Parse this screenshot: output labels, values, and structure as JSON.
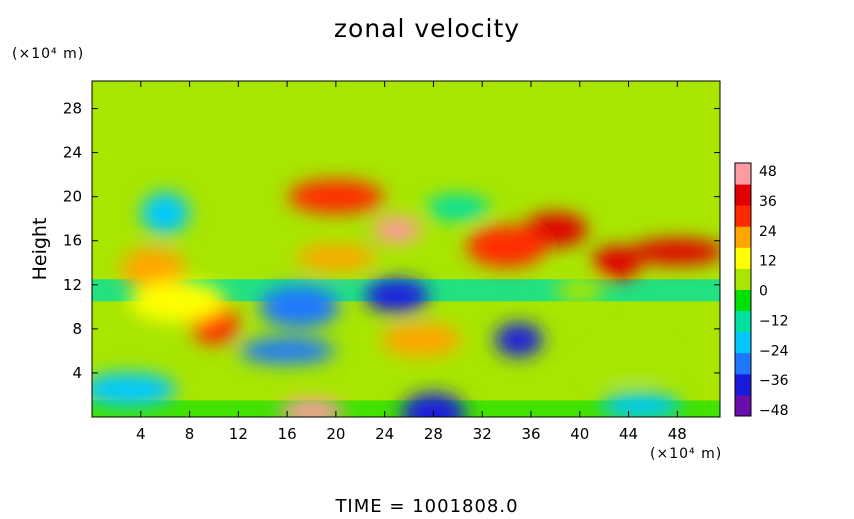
{
  "chart_data": {
    "type": "heatmap",
    "title": "zonal velocity",
    "ylabel": "Height",
    "xunit": "(×10⁴ m)",
    "yunit": "(×10⁴ m)",
    "footer_label": "TIME",
    "footer_eq": "=",
    "footer_value": "1001808.0",
    "xlim": [
      0,
      51.5
    ],
    "ylim": [
      0,
      30.5
    ],
    "xticks": [
      "4",
      "8",
      "12",
      "16",
      "20",
      "24",
      "28",
      "32",
      "36",
      "40",
      "44",
      "48"
    ],
    "yticks": [
      "4",
      "8",
      "12",
      "16",
      "20",
      "24",
      "28"
    ],
    "colorbar": {
      "ticks": [
        "48",
        "36",
        "24",
        "12",
        "0",
        "−12",
        "−24",
        "−36",
        "−48"
      ],
      "min": -48,
      "max": 48,
      "colors": [
        "#6a0dad",
        "#1a1adc",
        "#1e78ff",
        "#00c8ff",
        "#00e0a0",
        "#00e000",
        "#a8e600",
        "#ffff00",
        "#ffa500",
        "#ff2a00",
        "#e00000",
        "#ff9aa0"
      ]
    },
    "features": [
      {
        "x": 25,
        "y": 17,
        "value": 44
      },
      {
        "x": 38,
        "y": 17,
        "value": 40
      },
      {
        "x": 34,
        "y": 15.5,
        "value": 34
      },
      {
        "x": 48,
        "y": 15,
        "value": 36
      },
      {
        "x": 43,
        "y": 14,
        "value": 42
      },
      {
        "x": 5,
        "y": 13.5,
        "value": 26
      },
      {
        "x": 20,
        "y": 14.5,
        "value": 24
      },
      {
        "x": 20,
        "y": 20,
        "value": 30
      },
      {
        "x": 10,
        "y": 8.5,
        "value": 32
      },
      {
        "x": 18,
        "y": 0.5,
        "value": 44
      },
      {
        "x": 27,
        "y": 7,
        "value": 20
      },
      {
        "x": 7,
        "y": 10.5,
        "value": 10
      },
      {
        "x": 40,
        "y": 11.5,
        "value": 8
      },
      {
        "x": 25,
        "y": 11,
        "value": -40
      },
      {
        "x": 17,
        "y": 10,
        "value": -34
      },
      {
        "x": 16,
        "y": 6,
        "value": -30
      },
      {
        "x": 35,
        "y": 7,
        "value": -38
      },
      {
        "x": 28,
        "y": 0.3,
        "value": -36
      },
      {
        "x": 45,
        "y": 1,
        "value": -26
      },
      {
        "x": 3,
        "y": 2.5,
        "value": -24
      },
      {
        "x": 6,
        "y": 18.5,
        "value": -18
      },
      {
        "x": 30,
        "y": 19,
        "value": -10
      },
      {
        "x": 44,
        "y": 5,
        "value": 6
      }
    ]
  }
}
